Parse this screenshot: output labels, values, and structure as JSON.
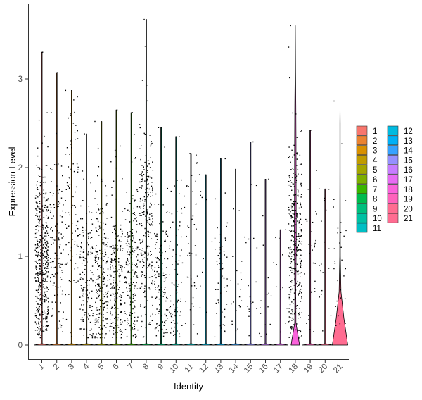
{
  "chart_data": {
    "type": "violin",
    "xlabel": "Identity",
    "ylabel": "Expression Level",
    "categories": [
      "1",
      "2",
      "3",
      "4",
      "5",
      "6",
      "7",
      "8",
      "9",
      "10",
      "11",
      "12",
      "13",
      "14",
      "15",
      "16",
      "17",
      "18",
      "19",
      "20",
      "21"
    ],
    "ylim": [
      -0.18,
      3.88
    ],
    "y_ticks": [
      0,
      1,
      2,
      3
    ],
    "max_values": [
      3.3,
      3.07,
      2.87,
      2.38,
      2.52,
      2.65,
      2.62,
      3.67,
      2.45,
      2.35,
      2.16,
      1.92,
      2.1,
      1.98,
      2.29,
      1.87,
      1.3,
      3.6,
      2.42,
      1.76,
      2.75
    ],
    "nonzero_counts": [
      460,
      130,
      95,
      150,
      230,
      210,
      200,
      240,
      130,
      90,
      45,
      12,
      55,
      22,
      20,
      16,
      12,
      330,
      30,
      18,
      30
    ],
    "nonzero_mean": [
      0.92,
      1.1,
      1.45,
      0.7,
      0.75,
      0.75,
      0.8,
      1.3,
      0.7,
      0.75,
      0.95,
      1.3,
      0.85,
      0.8,
      0.85,
      0.7,
      0.9,
      1.2,
      0.95,
      1.1,
      1.1
    ],
    "violin_shape": {
      "18": [
        [
          0,
          0.55
        ],
        [
          0.25,
          0.08
        ],
        [
          0.6,
          0.06
        ],
        [
          1.2,
          0.12
        ],
        [
          1.8,
          0.1
        ],
        [
          2.3,
          0.09
        ],
        [
          2.7,
          0.07
        ],
        [
          3.1,
          0.03
        ],
        [
          3.6,
          0.0
        ]
      ],
      "21": [
        [
          0,
          1.0
        ],
        [
          0.3,
          0.5
        ],
        [
          0.6,
          0.12
        ],
        [
          1.0,
          0.04
        ],
        [
          1.5,
          0.03
        ],
        [
          2.0,
          0.02
        ],
        [
          2.5,
          0.02
        ],
        [
          2.75,
          0.0
        ]
      ]
    },
    "legend": {
      "labels": [
        "1",
        "2",
        "3",
        "4",
        "5",
        "6",
        "7",
        "8",
        "9",
        "10",
        "11",
        "12",
        "13",
        "14",
        "15",
        "16",
        "17",
        "18",
        "19",
        "20",
        "21"
      ],
      "colors": [
        "#F8766D",
        "#EA8331",
        "#D89000",
        "#C09B00",
        "#A3A500",
        "#7CAE00",
        "#39B600",
        "#00BB4E",
        "#00BF7D",
        "#00C1A3",
        "#00BFC4",
        "#00BAE0",
        "#00B0F6",
        "#35A2FF",
        "#9590FF",
        "#C77CFF",
        "#E76BF3",
        "#FA62DB",
        "#FF62BC",
        "#FF6C91",
        "#FF6C91"
      ],
      "placement": "right",
      "columns": 2
    },
    "grid": false
  }
}
